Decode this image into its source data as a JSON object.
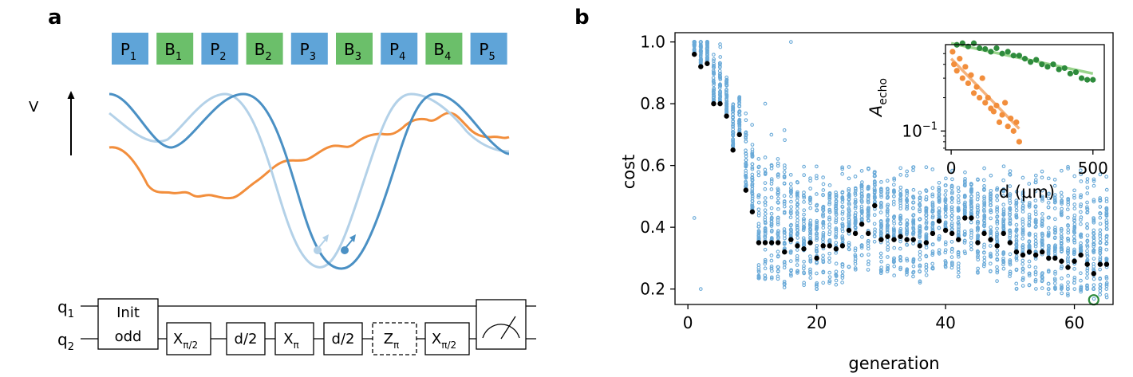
{
  "panel_a": {
    "label": "a",
    "v_axis_label": "V",
    "gates_row": [
      {
        "base": "P",
        "sub": "1",
        "color": "#5fa4d8"
      },
      {
        "base": "B",
        "sub": "1",
        "color": "#6bbf6a"
      },
      {
        "base": "P",
        "sub": "2",
        "color": "#5fa4d8"
      },
      {
        "base": "B",
        "sub": "2",
        "color": "#6bbf6a"
      },
      {
        "base": "P",
        "sub": "3",
        "color": "#5fa4d8"
      },
      {
        "base": "B",
        "sub": "3",
        "color": "#6bbf6a"
      },
      {
        "base": "P",
        "sub": "4",
        "color": "#5fa4d8"
      },
      {
        "base": "B",
        "sub": "4",
        "color": "#6bbf6a"
      },
      {
        "base": "P",
        "sub": "5",
        "color": "#5fa4d8"
      }
    ],
    "curve_colors": {
      "dark": "#4a90c4",
      "light": "#b3d1e8",
      "orange": "#f28e3c"
    },
    "circuit": {
      "q1": {
        "base": "q",
        "sub": "1"
      },
      "q2": {
        "base": "q",
        "sub": "2"
      },
      "init_lines": [
        "Init",
        "odd"
      ],
      "gates": [
        {
          "base": "X",
          "sub": "π/2",
          "dashed": false
        },
        {
          "base": "d/2",
          "sub": "",
          "dashed": false
        },
        {
          "base": "X",
          "sub": "π",
          "dashed": false
        },
        {
          "base": "d/2",
          "sub": "",
          "dashed": false
        },
        {
          "base": "Z",
          "sub": "π",
          "dashed": true
        },
        {
          "base": "X",
          "sub": "π/2",
          "dashed": false
        }
      ]
    }
  },
  "panel_b": {
    "label": "b",
    "chart_data": {
      "type": "scatter",
      "xlabel": "generation",
      "ylabel": "cost",
      "xlim": [
        -2,
        66
      ],
      "ylim": [
        0.15,
        1.03
      ],
      "xticks": [
        0,
        20,
        40,
        60
      ],
      "yticks": [
        0.2,
        0.4,
        0.6,
        0.8,
        1.0
      ],
      "ytick_labels": [
        "0.2",
        "0.4",
        "0.6",
        "0.8",
        "1.0"
      ],
      "population_color": "#6aaad8",
      "best_color": "#000000",
      "highlight_color": "#2e8b3c",
      "best_per_generation": {
        "generation": [
          1,
          2,
          3,
          4,
          5,
          6,
          7,
          8,
          9,
          10,
          11,
          12,
          13,
          14,
          15,
          16,
          17,
          18,
          19,
          20,
          21,
          22,
          23,
          24,
          25,
          26,
          27,
          28,
          29,
          30,
          31,
          32,
          33,
          34,
          35,
          36,
          37,
          38,
          39,
          40,
          41,
          42,
          43,
          44,
          45,
          46,
          47,
          48,
          49,
          50,
          51,
          52,
          53,
          54,
          55,
          56,
          57,
          58,
          59,
          60,
          61,
          62,
          63,
          64,
          65
        ],
        "cost": [
          0.96,
          0.92,
          0.93,
          0.8,
          0.8,
          0.76,
          0.65,
          0.7,
          0.52,
          0.45,
          0.35,
          0.35,
          0.35,
          0.35,
          0.32,
          0.36,
          0.34,
          0.33,
          0.35,
          0.3,
          0.34,
          0.34,
          0.33,
          0.34,
          0.39,
          0.38,
          0.41,
          0.38,
          0.47,
          0.36,
          0.37,
          0.36,
          0.37,
          0.36,
          0.36,
          0.34,
          0.35,
          0.38,
          0.42,
          0.39,
          0.38,
          0.36,
          0.43,
          0.43,
          0.35,
          0.38,
          0.36,
          0.34,
          0.38,
          0.35,
          0.32,
          0.31,
          0.32,
          0.31,
          0.32,
          0.3,
          0.3,
          0.29,
          0.27,
          0.29,
          0.31,
          0.28,
          0.25,
          0.28,
          0.28
        ]
      },
      "highlight_point": {
        "generation": 63,
        "cost": 0.165
      },
      "inset": {
        "type": "scatter",
        "xlabel": "d (μm)",
        "ylabel": "A",
        "ylabel_sub": "echo",
        "xticks": [
          0,
          500
        ],
        "yticks": [
          0.1
        ],
        "ytick_base": "10",
        "ytick_exp": "−1",
        "xlim": [
          -20,
          540
        ],
        "ylim_log10": [
          -1.17,
          -0.22
        ],
        "series": [
          {
            "name": "green",
            "color": "#2e8b3c",
            "fit_color": "#9ad48d",
            "x": [
              20,
              40,
              60,
              80,
              100,
              120,
              140,
              160,
              180,
              200,
              220,
              240,
              260,
              280,
              300,
              320,
              340,
              360,
              380,
              400,
              420,
              440,
              460,
              480,
              500
            ],
            "y": [
              0.6,
              0.62,
              0.58,
              0.62,
              0.56,
              0.55,
              0.52,
              0.56,
              0.5,
              0.52,
              0.48,
              0.48,
              0.45,
              0.42,
              0.44,
              0.4,
              0.38,
              0.4,
              0.36,
              0.37,
              0.33,
              0.34,
              0.3,
              0.29,
              0.29
            ],
            "fit": {
              "x": [
                0,
                500
              ],
              "y": [
                0.62,
                0.33
              ]
            }
          },
          {
            "name": "orange",
            "color": "#f28e3c",
            "fit_color": "#f5b27c",
            "x": [
              5,
              10,
              20,
              30,
              40,
              50,
              60,
              70,
              80,
              90,
              100,
              110,
              120,
              130,
              140,
              150,
              160,
              170,
              180,
              190,
              200,
              210,
              220,
              230,
              240
            ],
            "y": [
              0.52,
              0.4,
              0.35,
              0.45,
              0.3,
              0.38,
              0.27,
              0.32,
              0.22,
              0.25,
              0.2,
              0.3,
              0.18,
              0.2,
              0.16,
              0.15,
              0.17,
              0.12,
              0.14,
              0.18,
              0.11,
              0.13,
              0.1,
              0.12,
              0.08
            ],
            "fit": {
              "x": [
                0,
                240
              ],
              "y": [
                0.45,
                0.105
              ]
            }
          }
        ]
      }
    }
  }
}
